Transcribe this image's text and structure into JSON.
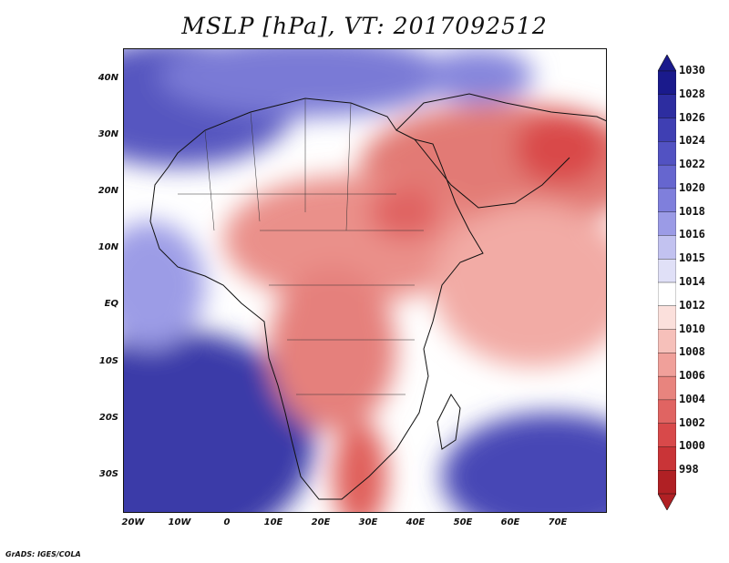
{
  "title": "MSLP [hPa], VT: 2017092512",
  "credit": "GrADS: IGES/COLA",
  "lat_labels": [
    "40N",
    "30N",
    "20N",
    "10N",
    "EQ",
    "10S",
    "20S",
    "30S"
  ],
  "lon_labels": [
    "20W",
    "10W",
    "0",
    "10E",
    "20E",
    "30E",
    "40E",
    "50E",
    "60E",
    "70E"
  ],
  "colorbar": {
    "levels": [
      "1030",
      "1028",
      "1026",
      "1024",
      "1022",
      "1020",
      "1018",
      "1016",
      "1015",
      "1014",
      "1012",
      "1010",
      "1008",
      "1006",
      "1004",
      "1002",
      "1000",
      "998"
    ],
    "colors": [
      "#1a1a8c",
      "#2d2da0",
      "#3f3fb3",
      "#5252c2",
      "#6666cf",
      "#7f7fdc",
      "#9b9be6",
      "#c2c2f0",
      "#e0e0f7",
      "#ffffff",
      "#fbe0dc",
      "#f6c0ba",
      "#f0a09a",
      "#e8847e",
      "#e06462",
      "#d8494a",
      "#c93437",
      "#b02024"
    ]
  },
  "map": {
    "region": "Africa, Arabia and Indian Ocean",
    "field": "MSLP"
  }
}
